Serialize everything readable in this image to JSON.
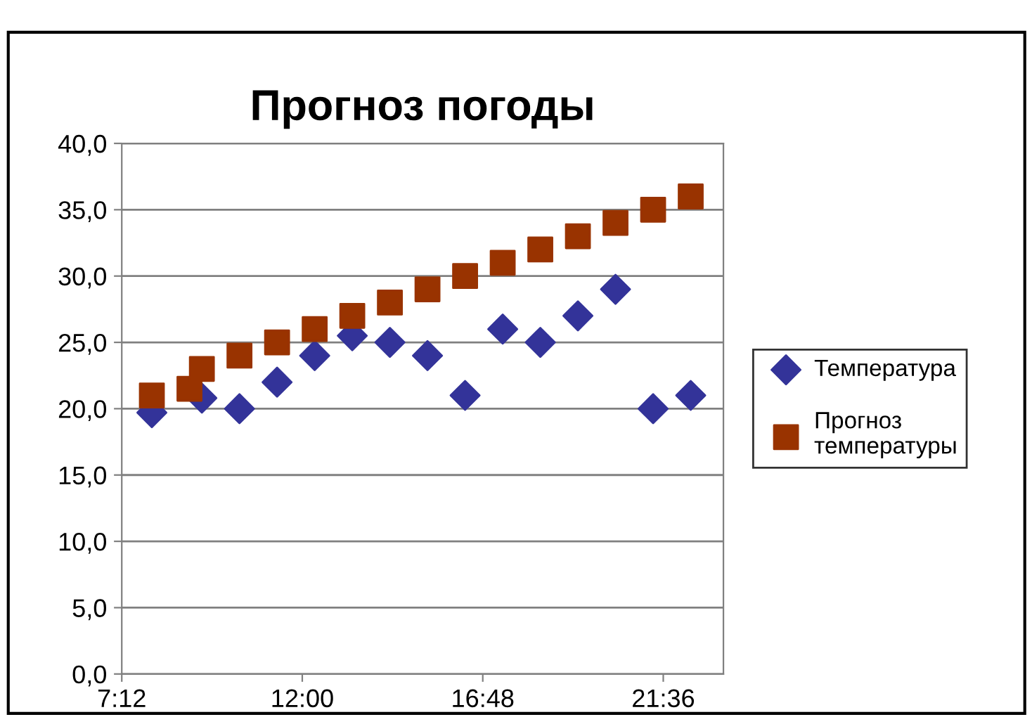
{
  "chart_data": {
    "type": "scatter",
    "title": "Прогноз погоды",
    "xlim": [
      7.2,
      23.2
    ],
    "xticks": [
      {
        "value": 7.2,
        "label": "7:12"
      },
      {
        "value": 12,
        "label": "12:00"
      },
      {
        "value": 16.8,
        "label": "16:48"
      },
      {
        "value": 21.6,
        "label": "21:36"
      }
    ],
    "ylim": [
      0,
      40
    ],
    "yticks": [
      {
        "value": 0,
        "label": "0,0"
      },
      {
        "value": 5,
        "label": "5,0"
      },
      {
        "value": 10,
        "label": "10,0"
      },
      {
        "value": 15,
        "label": "15,0"
      },
      {
        "value": 20,
        "label": "20,0"
      },
      {
        "value": 25,
        "label": "25,0"
      },
      {
        "value": 30,
        "label": "30,0"
      },
      {
        "value": 35,
        "label": "35,0"
      },
      {
        "value": 40,
        "label": "40,0"
      }
    ],
    "grid": "y",
    "legend": "right",
    "series": [
      {
        "name": "Температура",
        "color": "#333399",
        "marker": "diamond",
        "x": [
          8,
          9,
          9.33,
          10.33,
          11.33,
          12.33,
          13.33,
          14.33,
          15.33,
          16.33,
          17.33,
          18.33,
          19.33,
          20.33,
          21.33,
          22.33
        ],
        "values": [
          19.7,
          null,
          20.8,
          20,
          22,
          24,
          25.5,
          25,
          24,
          21,
          26,
          25,
          27,
          29,
          20,
          21
        ]
      },
      {
        "name": "Прогноз температуры",
        "color": "#993300",
        "marker": "square",
        "x": [
          8,
          9,
          9.33,
          10.33,
          11.33,
          12.33,
          13.33,
          14.33,
          15.33,
          16.33,
          17.33,
          18.33,
          19.33,
          20.33,
          21.33,
          22.33
        ],
        "values": [
          21,
          21.5,
          23,
          24,
          25,
          26,
          27,
          28,
          29,
          30,
          31,
          32,
          33,
          34,
          35,
          36
        ]
      }
    ]
  }
}
